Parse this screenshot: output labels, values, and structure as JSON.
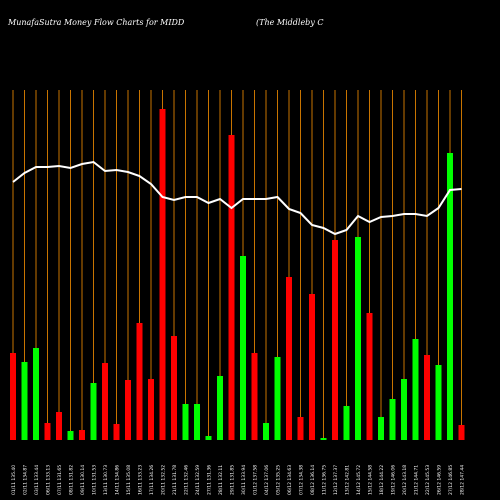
{
  "chart_data": {
    "type": "bar",
    "title": "MunafaSutra  Money Flow  Charts for MIDD",
    "subtitle": "(The   Middleby C",
    "categories": [
      "01/11 135.40",
      "02/11 134.87",
      "03/11 133.44",
      "06/11 133.13",
      "07/11 131.65",
      "08/11 131.82",
      "09/11 130.14",
      "10/11 131.53",
      "13/11 130.73",
      "14/11 134.86",
      "15/11 135.08",
      "16/11 133.23",
      "17/11 134.26",
      "20/11 132.52",
      "21/11 131.78",
      "22/11 132.46",
      "24/11 132.59",
      "27/11 131.36",
      "28/11 132.11",
      "29/11 131.85",
      "30/11 133.94",
      "01/12 137.58",
      "04/12 137.06",
      "05/12 135.25",
      "06/12 134.63",
      "07/12 134.38",
      "08/12 136.14",
      "11/12 136.75",
      "12/12 137.37",
      "13/12 142.81",
      "14/12 145.72",
      "15/12 144.58",
      "18/12 144.22",
      "19/12 146.06",
      "20/12 143.18",
      "21/12 144.71",
      "22/12 145.53",
      "26/12 146.59",
      "27/12 146.85",
      "28/12 147.44"
    ],
    "series": [
      {
        "values": [
          87,
          78,
          92,
          17,
          28,
          9,
          10,
          57,
          77,
          16,
          60,
          117,
          61,
          331,
          104,
          36,
          36,
          4,
          64,
          305,
          184,
          87,
          17,
          83,
          163,
          23,
          146,
          2,
          200,
          34,
          203,
          127,
          23,
          41,
          61,
          101,
          85,
          75,
          287,
          15
        ],
        "colors": [
          "#ff0000",
          "#00ff00",
          "#00ff00",
          "#ff0000",
          "#ff0000",
          "#00ff00",
          "#ff0000",
          "#00ff00",
          "#ff0000",
          "#ff0000",
          "#ff0000",
          "#ff0000",
          "#ff0000",
          "#ff0000",
          "#ff0000",
          "#00ff00",
          "#00ff00",
          "#00ff00",
          "#00ff00",
          "#ff0000",
          "#00ff00",
          "#ff0000",
          "#00ff00",
          "#00ff00",
          "#ff0000",
          "#ff0000",
          "#ff0000",
          "#00ff00",
          "#ff0000",
          "#00ff00",
          "#00ff00",
          "#ff0000",
          "#00ff00",
          "#00ff00",
          "#00ff00",
          "#00ff00",
          "#ff0000",
          "#00ff00",
          "#00ff00",
          "#ff0000"
        ]
      }
    ],
    "line": {
      "color": "#ffffff",
      "values": [
        258,
        267,
        273,
        273,
        274,
        272,
        276,
        278,
        269,
        270,
        268,
        264,
        256,
        243,
        240,
        243,
        243,
        237,
        241,
        232,
        241,
        241,
        241,
        243,
        231,
        227,
        215,
        212,
        206,
        210,
        224,
        218,
        223,
        224,
        226,
        226,
        224,
        232,
        250,
        251
      ]
    },
    "grid_color": "#c87400"
  }
}
